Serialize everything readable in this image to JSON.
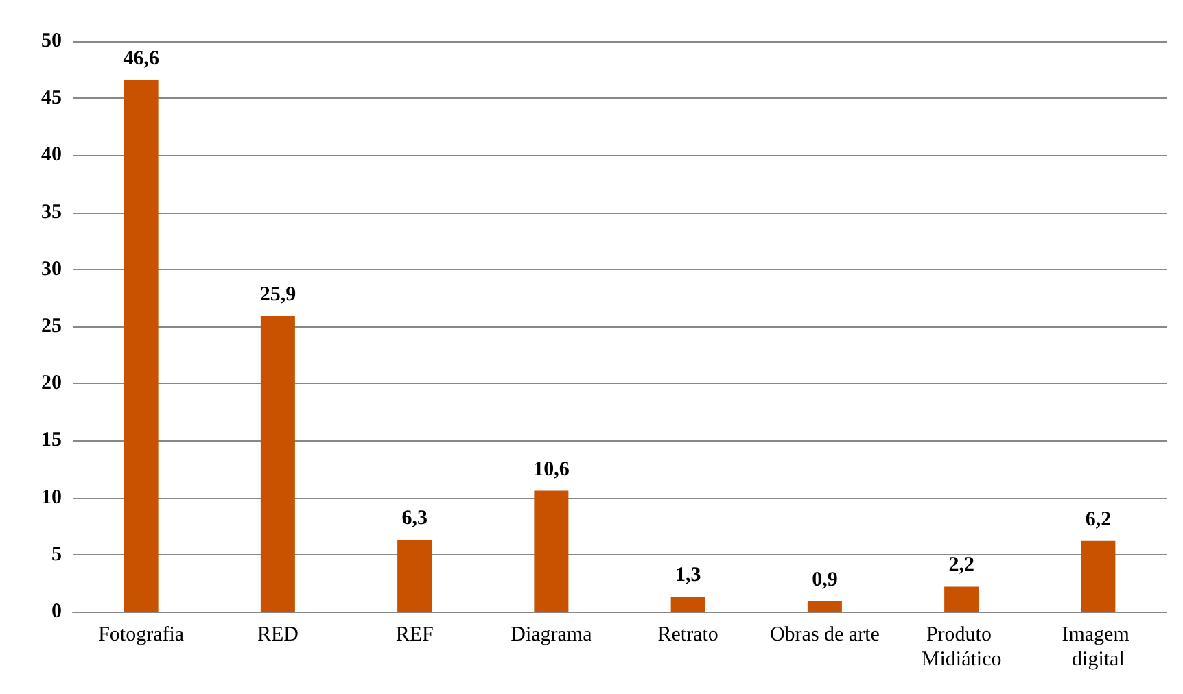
{
  "chart_data": {
    "type": "bar",
    "categories": [
      "Fotografia",
      "RED",
      "REF",
      "Diagrama",
      "Retrato",
      "Obras de arte",
      "Produto Midiático",
      "Imagem digital"
    ],
    "values": [
      46.6,
      25.9,
      6.3,
      10.6,
      1.3,
      0.9,
      2.2,
      6.2
    ],
    "value_labels": [
      "46,6",
      "25,9",
      "6,3",
      "10,6",
      "1,3",
      "0,9",
      "2,2",
      "6,2"
    ],
    "color": "#c85200",
    "ylim": [
      0,
      50
    ],
    "yticks": [
      0,
      5,
      10,
      15,
      20,
      25,
      30,
      35,
      40,
      45,
      50
    ],
    "grid": "y"
  }
}
